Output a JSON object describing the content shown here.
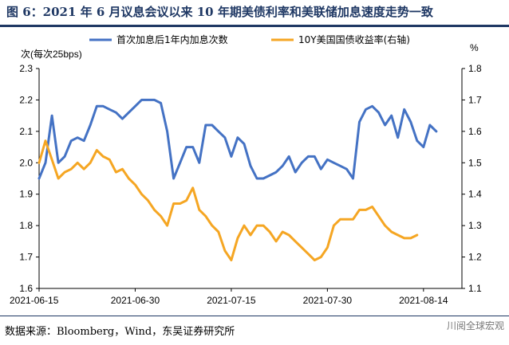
{
  "header": {
    "title": "图 6：2021 年 6 月议息会议以来 10 年期美债利率和美联储加息速度走势一致"
  },
  "footer": {
    "source": "数据来源：Bloomberg，Wind，东吴证券研究所",
    "watermark": "川阅全球宏观"
  },
  "chart_data": {
    "type": "line",
    "left_axis_label": "次(每次25bps)",
    "right_axis_label": "%",
    "ylim_left": [
      1.6,
      2.3
    ],
    "ylim_right": [
      1.1,
      1.8
    ],
    "y_ticks_left": [
      "1.6",
      "1.7",
      "1.8",
      "1.9",
      "2.0",
      "2.1",
      "2.2",
      "2.3"
    ],
    "y_ticks_right": [
      "1.1",
      "1.2",
      "1.3",
      "1.4",
      "1.5",
      "1.6",
      "1.7",
      "1.8"
    ],
    "x_tick_labels": [
      "2021-06-15",
      "2021-06-30",
      "2021-07-15",
      "2021-07-30",
      "2021-08-14"
    ],
    "grid": false,
    "legend_position": "top",
    "series": [
      {
        "name": "首次加息后1年内加息次数",
        "axis": "left",
        "color": "#4472c4",
        "points": [
          [
            "2021-06-15",
            1.95
          ],
          [
            "2021-06-16",
            2.0
          ],
          [
            "2021-06-17",
            2.15
          ],
          [
            "2021-06-18",
            2.0
          ],
          [
            "2021-06-19",
            2.02
          ],
          [
            "2021-06-20",
            2.07
          ],
          [
            "2021-06-21",
            2.08
          ],
          [
            "2021-06-22",
            2.07
          ],
          [
            "2021-06-23",
            2.12
          ],
          [
            "2021-06-24",
            2.18
          ],
          [
            "2021-06-25",
            2.18
          ],
          [
            "2021-06-26",
            2.17
          ],
          [
            "2021-06-27",
            2.16
          ],
          [
            "2021-06-28",
            2.14
          ],
          [
            "2021-06-29",
            2.16
          ],
          [
            "2021-06-30",
            2.18
          ],
          [
            "2021-07-01",
            2.2
          ],
          [
            "2021-07-02",
            2.2
          ],
          [
            "2021-07-03",
            2.2
          ],
          [
            "2021-07-04",
            2.19
          ],
          [
            "2021-07-05",
            2.1
          ],
          [
            "2021-07-06",
            1.95
          ],
          [
            "2021-07-07",
            2.0
          ],
          [
            "2021-07-08",
            2.05
          ],
          [
            "2021-07-09",
            2.05
          ],
          [
            "2021-07-10",
            2.0
          ],
          [
            "2021-07-11",
            2.12
          ],
          [
            "2021-07-12",
            2.12
          ],
          [
            "2021-07-13",
            2.1
          ],
          [
            "2021-07-14",
            2.08
          ],
          [
            "2021-07-15",
            2.02
          ],
          [
            "2021-07-16",
            2.08
          ],
          [
            "2021-07-17",
            2.06
          ],
          [
            "2021-07-18",
            1.99
          ],
          [
            "2021-07-19",
            1.95
          ],
          [
            "2021-07-20",
            1.95
          ],
          [
            "2021-07-21",
            1.96
          ],
          [
            "2021-07-22",
            1.97
          ],
          [
            "2021-07-23",
            1.99
          ],
          [
            "2021-07-24",
            2.02
          ],
          [
            "2021-07-25",
            1.97
          ],
          [
            "2021-07-26",
            2.0
          ],
          [
            "2021-07-27",
            2.02
          ],
          [
            "2021-07-28",
            2.02
          ],
          [
            "2021-07-29",
            1.98
          ],
          [
            "2021-07-30",
            2.01
          ],
          [
            "2021-07-31",
            2.0
          ],
          [
            "2021-08-01",
            1.99
          ],
          [
            "2021-08-02",
            1.98
          ],
          [
            "2021-08-03",
            1.95
          ],
          [
            "2021-08-04",
            2.13
          ],
          [
            "2021-08-05",
            2.17
          ],
          [
            "2021-08-06",
            2.18
          ],
          [
            "2021-08-07",
            2.16
          ],
          [
            "2021-08-08",
            2.12
          ],
          [
            "2021-08-09",
            2.15
          ],
          [
            "2021-08-10",
            2.08
          ],
          [
            "2021-08-11",
            2.17
          ],
          [
            "2021-08-12",
            2.13
          ],
          [
            "2021-08-13",
            2.07
          ],
          [
            "2021-08-14",
            2.05
          ],
          [
            "2021-08-15",
            2.12
          ],
          [
            "2021-08-16",
            2.1
          ]
        ]
      },
      {
        "name": "10Y美国国债收益率(右轴)",
        "axis": "right",
        "color": "#f5a623",
        "points": [
          [
            "2021-06-15",
            1.5
          ],
          [
            "2021-06-16",
            1.57
          ],
          [
            "2021-06-17",
            1.51
          ],
          [
            "2021-06-18",
            1.45
          ],
          [
            "2021-06-19",
            1.47
          ],
          [
            "2021-06-20",
            1.48
          ],
          [
            "2021-06-21",
            1.5
          ],
          [
            "2021-06-22",
            1.48
          ],
          [
            "2021-06-23",
            1.5
          ],
          [
            "2021-06-24",
            1.54
          ],
          [
            "2021-06-25",
            1.52
          ],
          [
            "2021-06-26",
            1.51
          ],
          [
            "2021-06-27",
            1.47
          ],
          [
            "2021-06-28",
            1.48
          ],
          [
            "2021-06-29",
            1.45
          ],
          [
            "2021-06-30",
            1.43
          ],
          [
            "2021-07-01",
            1.4
          ],
          [
            "2021-07-02",
            1.38
          ],
          [
            "2021-07-03",
            1.35
          ],
          [
            "2021-07-04",
            1.33
          ],
          [
            "2021-07-05",
            1.3
          ],
          [
            "2021-07-06",
            1.37
          ],
          [
            "2021-07-07",
            1.37
          ],
          [
            "2021-07-08",
            1.38
          ],
          [
            "2021-07-09",
            1.42
          ],
          [
            "2021-07-10",
            1.35
          ],
          [
            "2021-07-11",
            1.33
          ],
          [
            "2021-07-12",
            1.3
          ],
          [
            "2021-07-13",
            1.28
          ],
          [
            "2021-07-14",
            1.22
          ],
          [
            "2021-07-15",
            1.19
          ],
          [
            "2021-07-16",
            1.26
          ],
          [
            "2021-07-17",
            1.3
          ],
          [
            "2021-07-18",
            1.27
          ],
          [
            "2021-07-19",
            1.3
          ],
          [
            "2021-07-20",
            1.3
          ],
          [
            "2021-07-21",
            1.28
          ],
          [
            "2021-07-22",
            1.25
          ],
          [
            "2021-07-23",
            1.28
          ],
          [
            "2021-07-24",
            1.27
          ],
          [
            "2021-07-25",
            1.25
          ],
          [
            "2021-07-26",
            1.23
          ],
          [
            "2021-07-27",
            1.21
          ],
          [
            "2021-07-28",
            1.19
          ],
          [
            "2021-07-29",
            1.2
          ],
          [
            "2021-07-30",
            1.23
          ],
          [
            "2021-07-31",
            1.3
          ],
          [
            "2021-08-01",
            1.32
          ],
          [
            "2021-08-02",
            1.32
          ],
          [
            "2021-08-03",
            1.32
          ],
          [
            "2021-08-04",
            1.35
          ],
          [
            "2021-08-05",
            1.35
          ],
          [
            "2021-08-06",
            1.36
          ],
          [
            "2021-08-07",
            1.33
          ],
          [
            "2021-08-08",
            1.3
          ],
          [
            "2021-08-09",
            1.28
          ],
          [
            "2021-08-10",
            1.27
          ],
          [
            "2021-08-11",
            1.26
          ],
          [
            "2021-08-12",
            1.26
          ],
          [
            "2021-08-13",
            1.27
          ]
        ]
      }
    ]
  }
}
